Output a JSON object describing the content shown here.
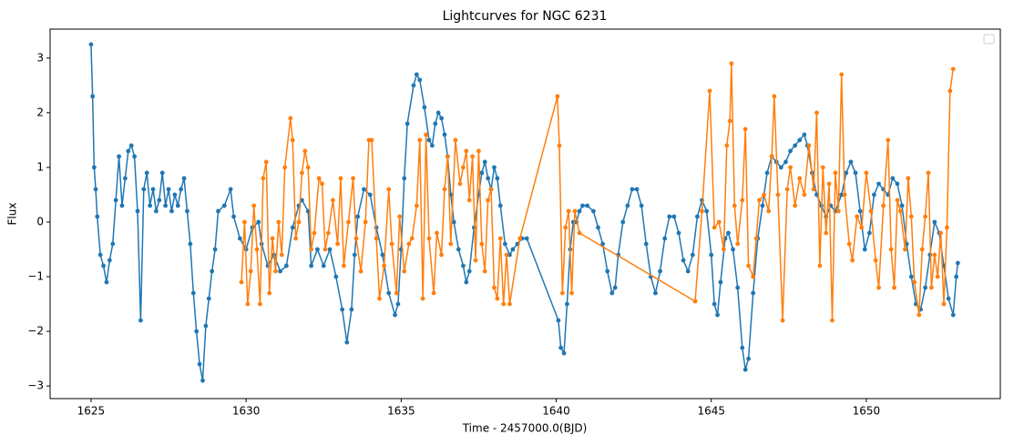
{
  "chart_data": {
    "type": "line",
    "title": "Lightcurves for NGC 6231",
    "xlabel": "Time - 2457000.0(BJD)",
    "ylabel": "Flux",
    "xlim": [
      1623.68,
      1654.32
    ],
    "ylim": [
      -3.23,
      3.53
    ],
    "xticks": [
      1625,
      1630,
      1635,
      1640,
      1645,
      1650
    ],
    "yticks": [
      {
        "value": -3,
        "label": "−3"
      },
      {
        "value": -2,
        "label": "−2"
      },
      {
        "value": -1,
        "label": "−1"
      },
      0,
      1,
      2,
      3
    ],
    "grid": false,
    "legend": "upper right",
    "series": [
      {
        "color": "#1f77b4",
        "x": [
          1625.0,
          1625.05,
          1625.1,
          1625.15,
          1625.2,
          1625.3,
          1625.4,
          1625.5,
          1625.6,
          1625.7,
          1625.8,
          1625.9,
          1626.0,
          1626.1,
          1626.2,
          1626.3,
          1626.4,
          1626.5,
          1626.6,
          1626.7,
          1626.8,
          1626.9,
          1627.0,
          1627.1,
          1627.2,
          1627.3,
          1627.4,
          1627.5,
          1627.6,
          1627.7,
          1627.8,
          1627.9,
          1628.0,
          1628.1,
          1628.2,
          1628.3,
          1628.4,
          1628.5,
          1628.6,
          1628.7,
          1628.8,
          1628.9,
          1629.0,
          1629.1,
          1629.3,
          1629.5,
          1629.6,
          1629.8,
          1630.0,
          1630.2,
          1630.4,
          1630.5,
          1630.7,
          1630.9,
          1631.1,
          1631.3,
          1631.5,
          1631.7,
          1631.8,
          1632.0,
          1632.1,
          1632.3,
          1632.5,
          1632.7,
          1632.9,
          1633.1,
          1633.25,
          1633.4,
          1633.5,
          1633.6,
          1633.8,
          1634.0,
          1634.2,
          1634.4,
          1634.6,
          1634.8,
          1634.9,
          1635.0,
          1635.1,
          1635.2,
          1635.4,
          1635.5,
          1635.6,
          1635.75,
          1635.9,
          1636.0,
          1636.1,
          1636.2,
          1636.3,
          1636.4,
          1636.5,
          1636.6,
          1636.7,
          1636.85,
          1637.0,
          1637.1,
          1637.2,
          1637.35,
          1637.5,
          1637.6,
          1637.7,
          1637.8,
          1637.9,
          1638.0,
          1638.1,
          1638.2,
          1638.35,
          1638.5,
          1638.6,
          1638.75,
          1638.9,
          1639.05,
          1640.07,
          1640.15,
          1640.25,
          1640.35,
          1640.45,
          1640.55,
          1640.65,
          1640.75,
          1640.85,
          1641.0,
          1641.2,
          1641.35,
          1641.5,
          1641.65,
          1641.8,
          1641.9,
          1642.0,
          1642.15,
          1642.3,
          1642.45,
          1642.6,
          1642.75,
          1642.9,
          1643.05,
          1643.2,
          1643.35,
          1643.5,
          1643.65,
          1643.8,
          1643.95,
          1644.1,
          1644.25,
          1644.4,
          1644.55,
          1644.7,
          1644.85,
          1645.0,
          1645.1,
          1645.2,
          1645.3,
          1645.45,
          1645.55,
          1645.7,
          1645.85,
          1646.0,
          1646.1,
          1646.2,
          1646.35,
          1646.5,
          1646.65,
          1646.8,
          1646.95,
          1647.1,
          1647.25,
          1647.4,
          1647.55,
          1647.7,
          1647.85,
          1648.0,
          1648.1,
          1648.25,
          1648.4,
          1648.55,
          1648.7,
          1648.85,
          1649.0,
          1649.2,
          1649.35,
          1649.5,
          1649.65,
          1649.8,
          1649.95,
          1650.1,
          1650.25,
          1650.4,
          1650.55,
          1650.7,
          1650.85,
          1651.0,
          1651.15,
          1651.3,
          1651.45,
          1651.6,
          1651.75,
          1651.9,
          1652.05,
          1652.2,
          1652.35,
          1652.5,
          1652.65,
          1652.8,
          1652.9,
          1652.95
        ],
        "values": [
          3.25,
          2.3,
          1.0,
          0.6,
          0.1,
          -0.6,
          -0.8,
          -1.1,
          -0.7,
          -0.4,
          0.4,
          1.2,
          0.3,
          0.8,
          1.3,
          1.4,
          1.2,
          0.2,
          -1.8,
          0.6,
          0.9,
          0.3,
          0.6,
          0.2,
          0.4,
          0.9,
          0.3,
          0.6,
          0.2,
          0.5,
          0.3,
          0.6,
          0.8,
          0.2,
          -0.4,
          -1.3,
          -2.0,
          -2.6,
          -2.9,
          -1.9,
          -1.4,
          -0.9,
          -0.5,
          0.2,
          0.3,
          0.6,
          0.1,
          -0.3,
          -0.5,
          -0.1,
          0.0,
          -0.4,
          -0.8,
          -0.6,
          -0.9,
          -0.8,
          -0.1,
          0.3,
          0.4,
          0.2,
          -0.8,
          -0.5,
          -0.8,
          -0.5,
          -1.0,
          -1.6,
          -2.2,
          -1.6,
          -0.6,
          0.1,
          0.6,
          0.5,
          -0.1,
          -0.6,
          -1.3,
          -1.7,
          -1.5,
          -0.5,
          0.8,
          1.8,
          2.5,
          2.7,
          2.6,
          2.1,
          1.5,
          1.4,
          1.8,
          2.0,
          1.9,
          1.6,
          1.2,
          0.5,
          0.0,
          -0.5,
          -0.8,
          -1.1,
          -0.9,
          -0.1,
          0.5,
          0.9,
          1.1,
          0.8,
          0.6,
          1.0,
          0.8,
          0.3,
          -0.4,
          -0.6,
          -0.5,
          -0.4,
          -0.3,
          -0.3,
          -1.8,
          -2.3,
          -2.4,
          -1.5,
          -0.5,
          0.0,
          0.0,
          0.2,
          0.3,
          0.3,
          0.2,
          -0.1,
          -0.4,
          -0.9,
          -1.3,
          -1.2,
          -0.6,
          0.0,
          0.3,
          0.6,
          0.6,
          0.3,
          -0.4,
          -1.0,
          -1.3,
          -0.9,
          -0.3,
          0.1,
          0.1,
          -0.2,
          -0.7,
          -0.9,
          -0.6,
          0.1,
          0.4,
          0.2,
          -0.6,
          -1.5,
          -1.7,
          -1.1,
          -0.3,
          -0.2,
          -0.5,
          -1.2,
          -2.3,
          -2.7,
          -2.5,
          -1.3,
          -0.3,
          0.3,
          0.9,
          1.2,
          1.1,
          1.0,
          1.1,
          1.3,
          1.4,
          1.5,
          1.6,
          1.4,
          0.9,
          0.5,
          0.3,
          0.1,
          0.3,
          0.2,
          0.5,
          0.9,
          1.1,
          0.9,
          0.2,
          -0.5,
          -0.2,
          0.5,
          0.7,
          0.6,
          0.5,
          0.8,
          0.7,
          0.3,
          -0.4,
          -1.0,
          -1.5,
          -1.6,
          -1.2,
          -0.6,
          0.0,
          -0.2,
          -0.8,
          -1.4,
          -1.7,
          -1.0,
          -0.75
        ]
      },
      {
        "color": "#ff7f0e",
        "x": [
          1629.85,
          1629.95,
          1630.05,
          1630.15,
          1630.25,
          1630.35,
          1630.45,
          1630.55,
          1630.65,
          1630.75,
          1630.85,
          1630.95,
          1631.05,
          1631.15,
          1631.25,
          1631.43,
          1631.5,
          1631.6,
          1631.7,
          1631.8,
          1631.9,
          1632.0,
          1632.1,
          1632.2,
          1632.35,
          1632.45,
          1632.55,
          1632.65,
          1632.8,
          1632.95,
          1633.05,
          1633.15,
          1633.3,
          1633.45,
          1633.55,
          1633.7,
          1633.85,
          1633.96,
          1634.05,
          1634.2,
          1634.3,
          1634.45,
          1634.6,
          1634.7,
          1634.85,
          1634.95,
          1635.1,
          1635.25,
          1635.35,
          1635.5,
          1635.6,
          1635.7,
          1635.8,
          1635.9,
          1636.05,
          1636.15,
          1636.3,
          1636.4,
          1636.5,
          1636.6,
          1636.75,
          1636.9,
          1637.0,
          1637.1,
          1637.2,
          1637.3,
          1637.4,
          1637.5,
          1637.6,
          1637.7,
          1637.8,
          1637.9,
          1638.0,
          1638.1,
          1638.2,
          1638.3,
          1638.4,
          1638.5,
          1638.83,
          1640.04,
          1640.1,
          1640.2,
          1640.3,
          1640.4,
          1640.5,
          1640.6,
          1640.75,
          1644.48,
          1644.7,
          1644.95,
          1645.1,
          1645.25,
          1645.4,
          1645.5,
          1645.6,
          1645.65,
          1645.75,
          1645.85,
          1646.0,
          1646.1,
          1646.2,
          1646.35,
          1646.45,
          1646.55,
          1646.7,
          1646.85,
          1646.95,
          1647.03,
          1647.15,
          1647.3,
          1647.45,
          1647.55,
          1647.7,
          1647.85,
          1648.0,
          1648.15,
          1648.3,
          1648.4,
          1648.5,
          1648.6,
          1648.7,
          1648.8,
          1648.9,
          1649.0,
          1649.1,
          1649.2,
          1649.3,
          1649.45,
          1649.55,
          1649.7,
          1649.85,
          1650.0,
          1650.15,
          1650.3,
          1650.4,
          1650.55,
          1650.7,
          1650.8,
          1650.9,
          1651.0,
          1651.1,
          1651.25,
          1651.35,
          1651.45,
          1651.55,
          1651.7,
          1651.8,
          1651.9,
          1652.0,
          1652.1,
          1652.2,
          1652.3,
          1652.4,
          1652.5,
          1652.6,
          1652.7,
          1652.8
        ],
        "values": [
          -1.1,
          0.0,
          -1.5,
          -0.9,
          0.3,
          -0.5,
          -1.5,
          0.8,
          1.1,
          -1.3,
          -0.3,
          -0.9,
          0.0,
          -0.6,
          1.0,
          1.9,
          1.5,
          -0.3,
          0.0,
          0.9,
          1.3,
          1.0,
          -0.5,
          -0.2,
          0.8,
          0.7,
          -0.5,
          -0.2,
          0.4,
          -0.4,
          0.8,
          -0.8,
          0.0,
          0.8,
          -0.3,
          -0.9,
          0.0,
          1.5,
          1.5,
          -0.3,
          -1.4,
          -0.8,
          0.6,
          -0.4,
          -1.3,
          0.1,
          -0.9,
          -0.4,
          -0.3,
          0.3,
          1.5,
          -1.4,
          1.6,
          -0.3,
          -1.3,
          -0.2,
          -0.6,
          0.6,
          1.2,
          -0.4,
          1.5,
          0.7,
          1.0,
          1.3,
          0.4,
          1.2,
          -0.7,
          1.3,
          -0.4,
          -0.9,
          0.4,
          0.6,
          -1.2,
          -1.4,
          -0.3,
          -1.5,
          -0.6,
          -1.5,
          -0.3,
          2.3,
          1.4,
          -1.3,
          -0.1,
          0.2,
          -1.3,
          0.2,
          -0.2,
          -1.45,
          0.2,
          2.4,
          -0.1,
          0.0,
          -0.5,
          1.4,
          1.85,
          2.9,
          0.3,
          -0.4,
          0.4,
          1.7,
          -0.8,
          -1.0,
          -0.3,
          0.4,
          0.5,
          0.2,
          1.2,
          2.3,
          0.5,
          -1.8,
          0.6,
          1.0,
          0.3,
          0.8,
          0.5,
          1.4,
          0.6,
          2.0,
          -0.8,
          1.0,
          -0.2,
          0.7,
          -1.8,
          0.9,
          0.2,
          2.7,
          0.5,
          -0.4,
          -0.7,
          0.1,
          -0.1,
          0.9,
          0.2,
          -0.7,
          -1.2,
          0.3,
          1.5,
          -0.5,
          -1.2,
          0.4,
          0.2,
          -0.5,
          0.8,
          0.1,
          -1.1,
          -1.7,
          -0.5,
          0.1,
          0.9,
          -1.2,
          -0.6,
          -1.0,
          -0.2,
          -1.5,
          -0.1,
          2.4,
          2.8
        ]
      }
    ]
  }
}
